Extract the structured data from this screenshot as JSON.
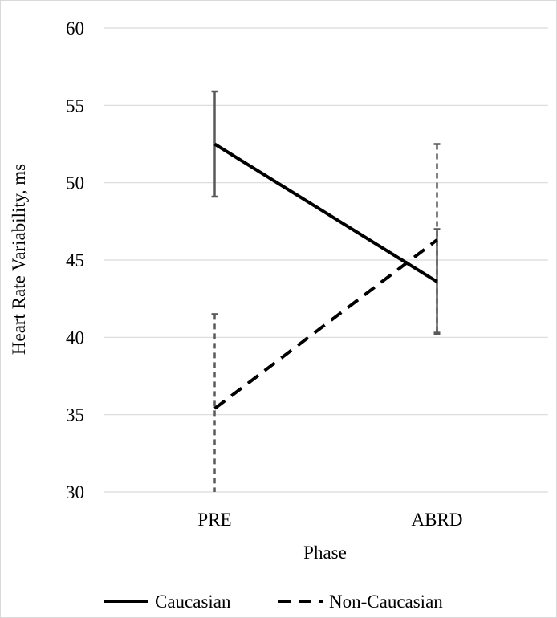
{
  "chart_data": {
    "type": "line",
    "title": "",
    "xlabel": "Phase",
    "ylabel": "Heart Rate Variability, ms",
    "categories": [
      "PRE",
      "ABRD"
    ],
    "ylim": [
      30,
      60
    ],
    "yticks": [
      30,
      35,
      40,
      45,
      50,
      55,
      60
    ],
    "grid": true,
    "legend_position": "bottom",
    "series": [
      {
        "name": "Caucasian",
        "values": [
          52.5,
          43.6
        ],
        "error_low": [
          49.1,
          40.2
        ],
        "error_high": [
          55.9,
          47.0
        ],
        "line_style": "solid",
        "color": "#000000",
        "error_color": "#595959"
      },
      {
        "name": "Non-Caucasian",
        "values": [
          35.4,
          46.3
        ],
        "error_low": [
          30.0,
          40.3
        ],
        "error_high": [
          41.5,
          52.5
        ],
        "line_style": "dashed",
        "color": "#000000",
        "error_color": "#595959"
      }
    ]
  }
}
